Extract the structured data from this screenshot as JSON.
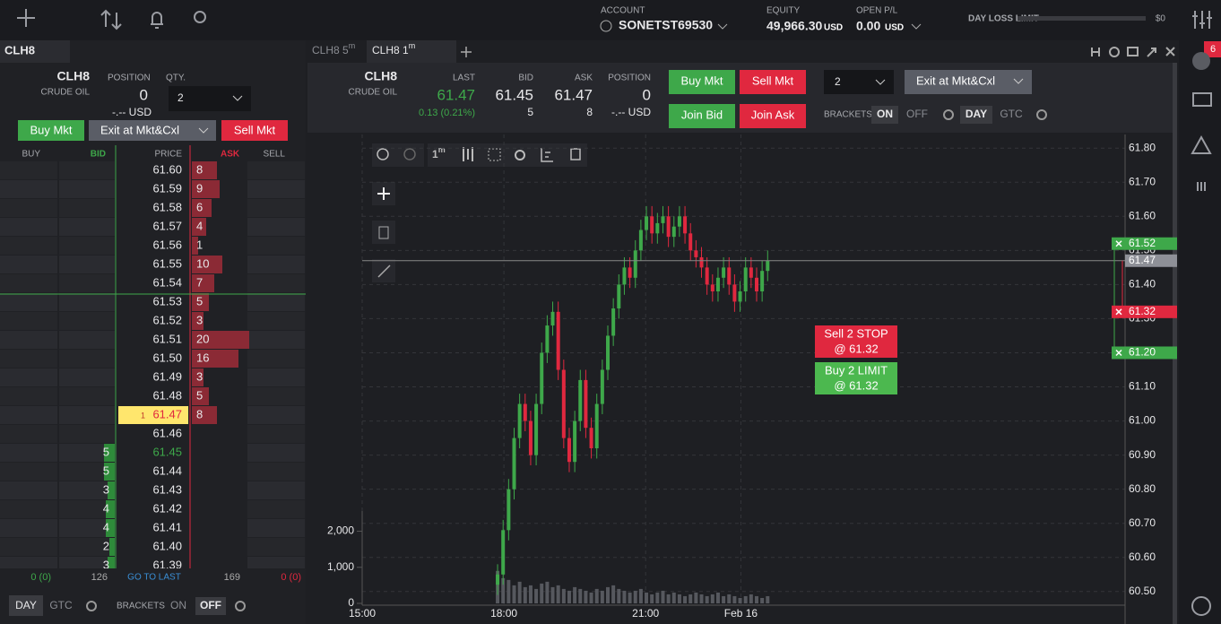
{
  "top": {
    "account_label": "ACCOUNT",
    "account": "SONETST69530",
    "equity_label": "EQUITY",
    "equity": "49,966.30",
    "equity_unit": "USD",
    "open_pl_label": "OPEN P/L",
    "open_pl": "0.00",
    "open_pl_unit": "USD",
    "day_loss_label": "DAY LOSS LIMIT",
    "day_loss": "$0",
    "notifications": "6"
  },
  "ladder": {
    "tab": "CLH8",
    "symbol": "CLH8",
    "name": "CRUDE OIL",
    "position_label": "POSITION",
    "position": "0",
    "position_value": "-.-- USD",
    "qty_label": "QTY.",
    "qty": "2",
    "buy": "Buy Mkt",
    "exit": "Exit at Mkt&Cxl",
    "sell": "Sell Mkt",
    "headers": [
      "BUY",
      "BID",
      "PRICE",
      "ASK",
      "SELL"
    ],
    "rows": [
      {
        "price": "61.60",
        "ask": 8
      },
      {
        "price": "61.59",
        "ask": 9
      },
      {
        "price": "61.58",
        "ask": 6
      },
      {
        "price": "61.57",
        "ask": 4
      },
      {
        "price": "61.56",
        "ask": 1
      },
      {
        "price": "61.55",
        "ask": 10
      },
      {
        "price": "61.54",
        "ask": 7
      },
      {
        "price": "61.53",
        "ask": 5
      },
      {
        "price": "61.52",
        "ask": 3
      },
      {
        "price": "61.51",
        "ask": 20
      },
      {
        "price": "61.50",
        "ask": 16
      },
      {
        "price": "61.49",
        "ask": 3
      },
      {
        "price": "61.48",
        "ask": 5
      },
      {
        "price": "61.47",
        "ask": 8,
        "last_size": "1"
      },
      {
        "price": "61.46"
      },
      {
        "price": "61.45",
        "bid": 5
      },
      {
        "price": "61.44",
        "bid": 5
      },
      {
        "price": "61.43",
        "bid": 3
      },
      {
        "price": "61.42",
        "bid": 4
      },
      {
        "price": "61.41",
        "bid": 4
      },
      {
        "price": "61.40",
        "bid": 2
      },
      {
        "price": "61.39",
        "bid": 3
      }
    ],
    "footer": [
      "0 (0)",
      "126",
      "GO TO LAST",
      "169",
      "0 (0)"
    ],
    "tif": [
      "DAY",
      "GTC"
    ],
    "brackets_label": "BRACKETS",
    "brackets": [
      "ON",
      "OFF"
    ]
  },
  "chart_panel": {
    "tabs": [
      {
        "name": "CLH8 5",
        "unit": "m"
      },
      {
        "name": "CLH8 1",
        "unit": "m"
      }
    ],
    "symbol": "CLH8",
    "name": "CRUDE OIL",
    "last_label": "LAST",
    "last": "61.47",
    "change": "0.13 (0.21%)",
    "bid_label": "BID",
    "bid": "61.45",
    "bid_size": "5",
    "ask_label": "ASK",
    "ask": "61.47",
    "ask_size": "8",
    "position_label": "POSITION",
    "position": "0",
    "position_value": "-.-- USD",
    "buttons": [
      "Buy Mkt",
      "Sell Mkt",
      "Join Bid",
      "Join Ask"
    ],
    "qty": "2",
    "exit": "Exit at Mkt&Cxl",
    "brackets_label": "BRACKETS",
    "brackets": [
      "ON",
      "OFF"
    ],
    "tif": [
      "DAY",
      "GTC"
    ],
    "interval": "1",
    "interval_unit": "m"
  },
  "chart_data": {
    "type": "candlestick",
    "up_color": "#3ea84a",
    "down_color": "#e0283f",
    "volume_color": "#56585e",
    "grid": true,
    "x": [
      172,
      179,
      186,
      193,
      200,
      207,
      214,
      221,
      228,
      235,
      242,
      249,
      256,
      263,
      270,
      277,
      284,
      291,
      298,
      305,
      312,
      319,
      326,
      333,
      340,
      347,
      354,
      361,
      368,
      375,
      382,
      389,
      396,
      403,
      410,
      417,
      424,
      431,
      438,
      445,
      452,
      459,
      466,
      473,
      480,
      487,
      494,
      501,
      508,
      515
    ],
    "candles": [
      [
        60.52,
        60.58,
        60.49,
        60.55
      ],
      [
        60.55,
        60.71,
        60.52,
        60.68
      ],
      [
        60.68,
        60.83,
        60.65,
        60.8
      ],
      [
        60.8,
        60.98,
        60.77,
        60.95
      ],
      [
        60.95,
        61.08,
        60.92,
        61.05
      ],
      [
        61.05,
        61.08,
        60.97,
        61
      ],
      [
        61,
        61.03,
        60.87,
        60.9
      ],
      [
        60.9,
        61.08,
        60.87,
        61.05
      ],
      [
        61.05,
        61.23,
        61.02,
        61.2
      ],
      [
        61.2,
        61.31,
        61.17,
        61.28
      ],
      [
        61.28,
        61.35,
        61.25,
        61.32
      ],
      [
        61.32,
        61.35,
        61.12,
        61.15
      ],
      [
        61.15,
        61.18,
        60.92,
        60.95
      ],
      [
        60.95,
        60.98,
        60.85,
        60.88
      ],
      [
        60.88,
        61.03,
        60.85,
        61
      ],
      [
        61,
        61.15,
        60.97,
        61.12
      ],
      [
        61.12,
        61.15,
        60.95,
        60.98
      ],
      [
        60.98,
        61.01,
        60.89,
        60.92
      ],
      [
        60.92,
        61.08,
        60.89,
        61.05
      ],
      [
        61.05,
        61.18,
        61.02,
        61.15
      ],
      [
        61.15,
        61.28,
        61.12,
        61.25
      ],
      [
        61.25,
        61.36,
        61.22,
        61.33
      ],
      [
        61.33,
        61.43,
        61.3,
        61.4
      ],
      [
        61.4,
        61.48,
        61.37,
        61.45
      ],
      [
        61.45,
        61.48,
        61.39,
        61.42
      ],
      [
        61.42,
        61.53,
        61.39,
        61.5
      ],
      [
        61.5,
        61.59,
        61.47,
        61.56
      ],
      [
        61.56,
        61.63,
        61.53,
        61.6
      ],
      [
        61.6,
        61.63,
        61.52,
        61.55
      ],
      [
        61.55,
        61.61,
        61.52,
        61.58
      ],
      [
        61.58,
        61.63,
        61.55,
        61.6
      ],
      [
        61.6,
        61.63,
        61.51,
        61.54
      ],
      [
        61.54,
        61.6,
        61.51,
        61.57
      ],
      [
        61.57,
        61.63,
        61.54,
        61.6
      ],
      [
        61.6,
        61.63,
        61.52,
        61.55
      ],
      [
        61.55,
        61.58,
        61.47,
        61.5
      ],
      [
        61.5,
        61.53,
        61.45,
        61.48
      ],
      [
        61.48,
        61.51,
        61.42,
        61.45
      ],
      [
        61.45,
        61.48,
        61.37,
        61.4
      ],
      [
        61.4,
        61.43,
        61.35,
        61.38
      ],
      [
        61.38,
        61.45,
        61.35,
        61.42
      ],
      [
        61.42,
        61.48,
        61.39,
        61.45
      ],
      [
        61.45,
        61.48,
        61.37,
        61.4
      ],
      [
        61.4,
        61.43,
        61.32,
        61.35
      ],
      [
        61.35,
        61.41,
        61.32,
        61.38
      ],
      [
        61.38,
        61.48,
        61.35,
        61.45
      ],
      [
        61.45,
        61.48,
        61.39,
        61.42
      ],
      [
        61.42,
        61.45,
        61.35,
        61.38
      ],
      [
        61.38,
        61.47,
        61.35,
        61.44
      ],
      [
        61.44,
        61.5,
        61.41,
        61.47
      ]
    ],
    "volume": [
      900,
      700,
      650,
      500,
      600,
      450,
      500,
      400,
      550,
      600,
      450,
      500,
      400,
      350,
      450,
      400,
      350,
      300,
      400,
      350,
      450,
      500,
      400,
      350,
      300,
      350,
      400,
      300,
      250,
      300,
      350,
      250,
      300,
      250,
      200,
      250,
      300,
      250,
      200,
      250,
      300,
      200,
      250,
      200,
      150,
      200,
      250,
      200,
      150,
      200
    ],
    "xlim": [
      0,
      969
    ],
    "xticks": [
      {
        "value": 0,
        "label": "15:00"
      },
      {
        "value": 180,
        "label": "18:00"
      },
      {
        "value": 360,
        "label": "21:00"
      },
      {
        "value": 481,
        "label": "Feb 16"
      }
    ],
    "ylim": [
      60.46,
      61.84
    ],
    "yticks": [
      {
        "value": 60.5,
        "label": "60.50"
      },
      {
        "value": 60.6,
        "label": "60.60"
      },
      {
        "value": 60.7,
        "label": "60.70"
      },
      {
        "value": 60.8,
        "label": "60.80"
      },
      {
        "value": 60.9,
        "label": "60.90"
      },
      {
        "value": 61,
        "label": "61.00"
      },
      {
        "value": 61.1,
        "label": "61.10"
      },
      {
        "value": 61.2,
        "label": "61.20"
      },
      {
        "value": 61.3,
        "label": "61.30"
      },
      {
        "value": 61.4,
        "label": "61.40"
      },
      {
        "value": 61.5,
        "label": "61.50"
      },
      {
        "value": 61.6,
        "label": "61.60"
      },
      {
        "value": 61.7,
        "label": "61.70"
      },
      {
        "value": 61.8,
        "label": "61.80"
      }
    ],
    "vlim": [
      0,
      13000
    ],
    "vticks": [
      0,
      {
        "value": 1000,
        "label": "1,000"
      },
      {
        "value": 2000,
        "label": "2,000"
      }
    ],
    "price_tags": [
      {
        "value": 61.52,
        "label": "61.52",
        "color": "#3ea84a"
      },
      {
        "value": 61.47,
        "label": "61.47",
        "color": "#8e9097"
      },
      {
        "value": 61.32,
        "label": "61.32",
        "color": "#e0283f"
      },
      {
        "value": 61.2,
        "label": "61.20",
        "color": "#3ea84a"
      }
    ],
    "orders": [
      {
        "text": "Sell 2 STOP",
        "price": "@ 61.32",
        "color": "#e0283f"
      },
      {
        "text": "Buy 2 LIMIT",
        "price": "@ 61.32",
        "color": "#4cb84f"
      }
    ]
  }
}
